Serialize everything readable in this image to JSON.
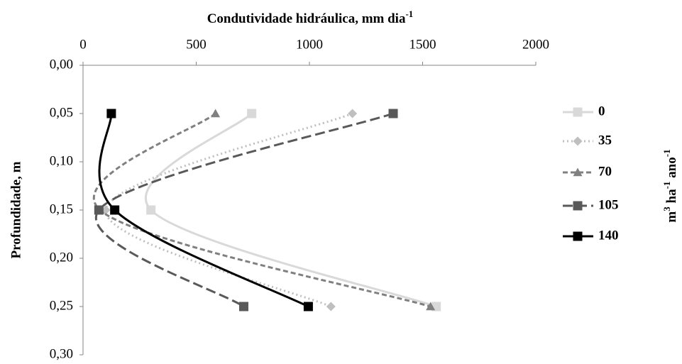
{
  "chart_data": {
    "type": "line",
    "smooth": true,
    "xlabel": "Condutividade hidráulica, mm dia",
    "xlabel_sup": "-1",
    "ylabel": "Profundidade, m",
    "legend_title": [
      "m",
      "3",
      " ha",
      "-1",
      " ano",
      "-1"
    ],
    "y": [
      0.05,
      0.15,
      0.25
    ],
    "xlim": [
      0,
      2000
    ],
    "xticks": [
      0,
      500,
      1000,
      1500,
      2000
    ],
    "ylim": [
      0,
      0.3
    ],
    "yticks": [
      {
        "value": 0,
        "label": "0,00"
      },
      {
        "value": 0.05,
        "label": "0,05"
      },
      {
        "value": 0.1,
        "label": "0,10"
      },
      {
        "value": 0.15,
        "label": "0,15"
      },
      {
        "value": 0.2,
        "label": "0,20"
      },
      {
        "value": 0.25,
        "label": "0,25"
      },
      {
        "value": 0.3,
        "label": "0,30"
      }
    ],
    "y_inverted": true,
    "legend": "right",
    "series": [
      {
        "name": "0",
        "color": "#d9d9d9",
        "marker": "square",
        "dash": "none",
        "values": [
          745,
          300,
          1560
        ]
      },
      {
        "name": "35",
        "color": "#bfbfbf",
        "marker": "diamond",
        "dash": "2,4",
        "values": [
          1190,
          100,
          1095
        ]
      },
      {
        "name": "70",
        "color": "#808080",
        "marker": "triangle",
        "dash": "7,4",
        "values": [
          585,
          75,
          1535
        ]
      },
      {
        "name": "105",
        "color": "#595959",
        "marker": "square",
        "dash": "14,6",
        "values": [
          1370,
          70,
          710
        ]
      },
      {
        "name": "140",
        "color": "#000000",
        "marker": "square",
        "dash": "none",
        "values": [
          125,
          140,
          995
        ]
      }
    ]
  }
}
